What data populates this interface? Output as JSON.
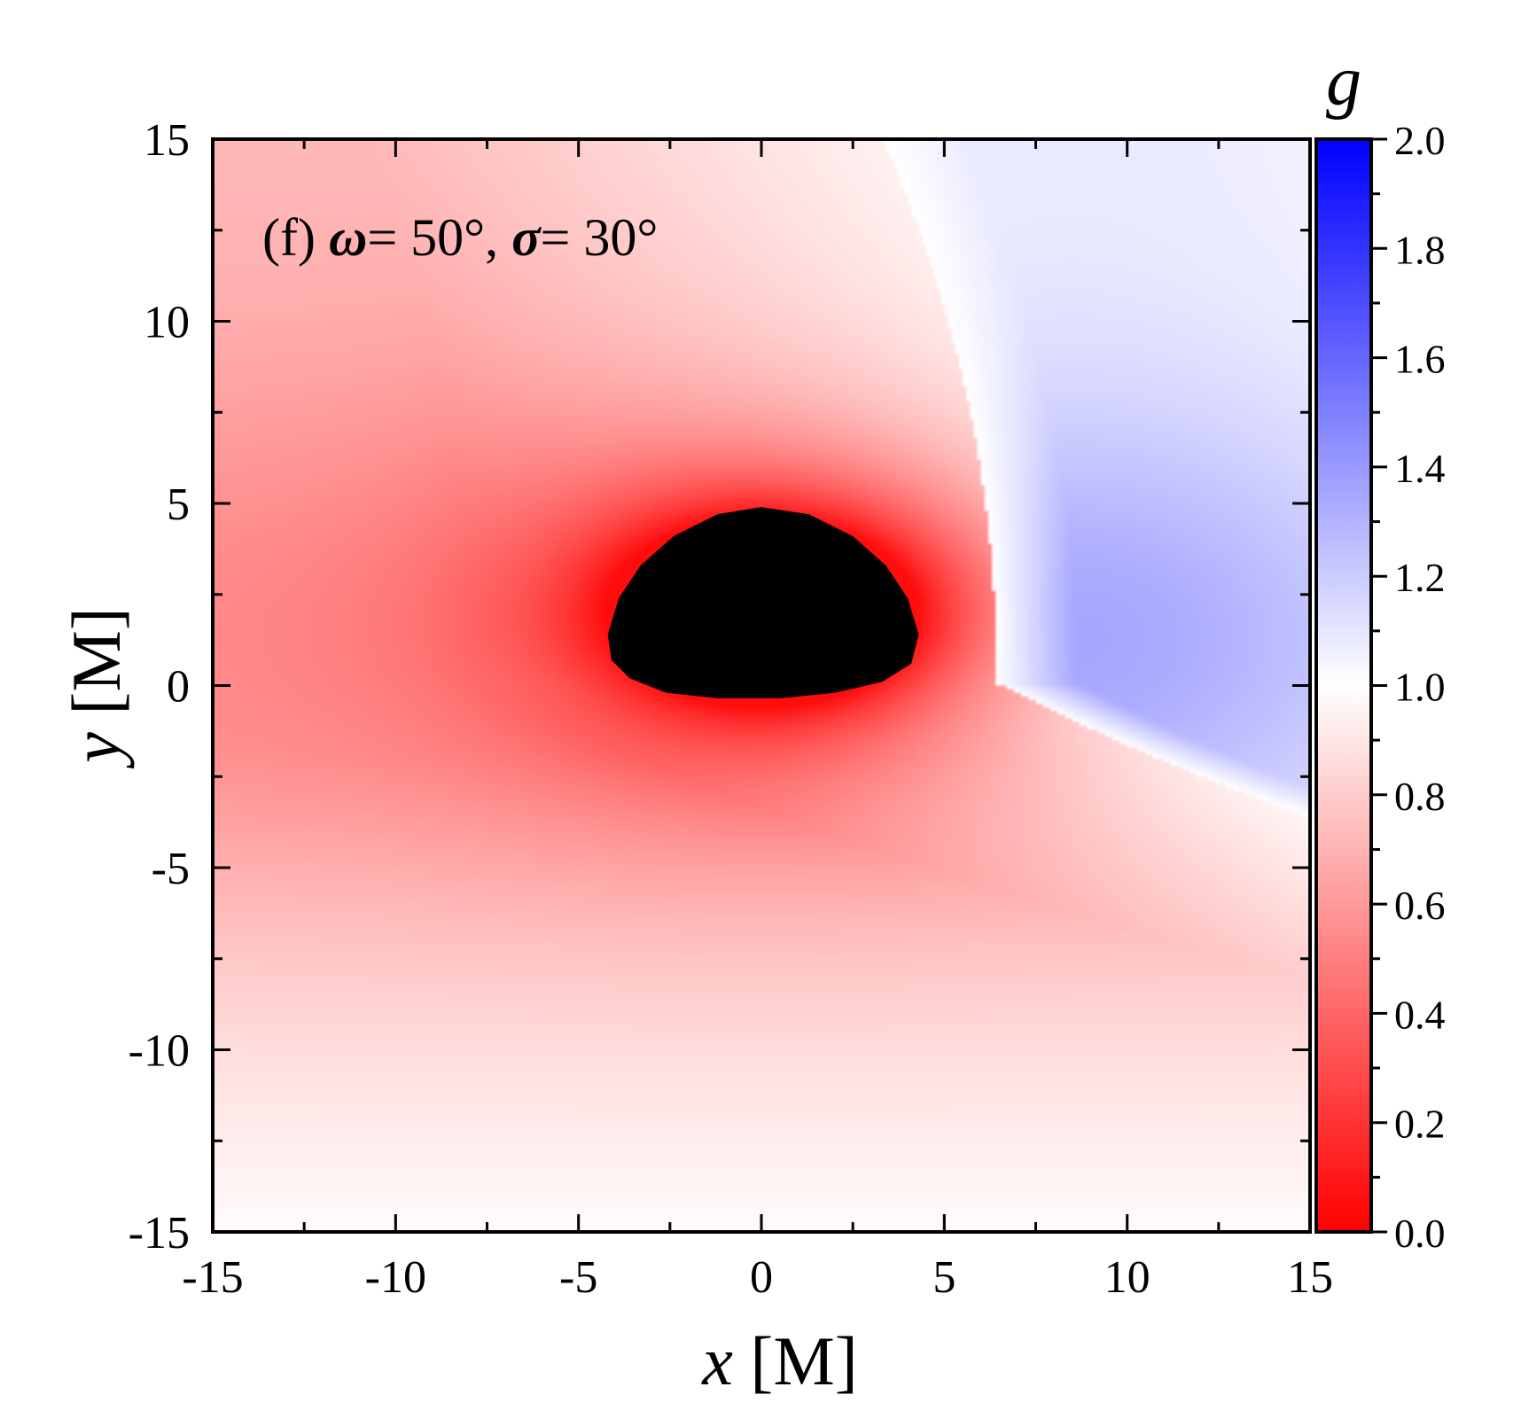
{
  "chart_data": {
    "type": "heatmap",
    "panel": {
      "label": "(f)",
      "omega_symbol": "ω",
      "omega_value": "= 50°,",
      "sigma_symbol": "σ",
      "sigma_value": "= 30°"
    },
    "xlabel": {
      "var": "x",
      "unit": "[M]"
    },
    "ylabel": {
      "var": "y",
      "unit": "[M]"
    },
    "xlim": [
      -15,
      15
    ],
    "ylim": [
      -15,
      15
    ],
    "x_ticks": [
      -15,
      -10,
      -5,
      0,
      5,
      10,
      15
    ],
    "y_ticks": [
      -15,
      -10,
      -5,
      0,
      5,
      10,
      15
    ],
    "x_tick_labels": [
      "-15",
      "-10",
      "-5",
      "0",
      "5",
      "10",
      "15"
    ],
    "y_tick_labels": [
      "-15",
      "-10",
      "-5",
      "0",
      "5",
      "10",
      "15"
    ],
    "colorbar": {
      "label": "g",
      "range": [
        0.0,
        2.0
      ],
      "ticks": [
        0.0,
        0.2,
        0.4,
        0.6,
        0.8,
        1.0,
        1.2,
        1.4,
        1.6,
        1.8,
        2.0
      ],
      "tick_labels": [
        "0.0",
        "0.2",
        "0.4",
        "0.6",
        "0.8",
        "1.0",
        "1.2",
        "1.4",
        "1.6",
        "1.8",
        "2.0"
      ],
      "colors": {
        "low": "#ff0000",
        "mid": "#ffffff",
        "high": "#0000ff"
      }
    },
    "field": {
      "shadow_color": "#000000",
      "shadow_outline": [
        [
          -4.2,
          1.4
        ],
        [
          -3.9,
          2.4
        ],
        [
          -3.3,
          3.3
        ],
        [
          -2.4,
          4.1
        ],
        [
          -1.2,
          4.7
        ],
        [
          0.0,
          4.9
        ],
        [
          1.3,
          4.7
        ],
        [
          2.5,
          4.1
        ],
        [
          3.4,
          3.3
        ],
        [
          4.0,
          2.4
        ],
        [
          4.3,
          1.4
        ],
        [
          4.1,
          0.6
        ],
        [
          3.3,
          0.1
        ],
        [
          2.0,
          -0.2
        ],
        [
          0.5,
          -0.35
        ],
        [
          -1.2,
          -0.35
        ],
        [
          -2.6,
          -0.2
        ],
        [
          -3.6,
          0.2
        ],
        [
          -4.1,
          0.7
        ]
      ],
      "shadow_g": 0.0,
      "near_shadow_g": 0.05,
      "far_left_g": 0.55,
      "upper_left_g": 0.7,
      "lower_left_g": 0.85,
      "g_equals_1_boundary": [
        [
          6.2,
          15
        ],
        [
          6.3,
          5.5
        ],
        [
          6.6,
          0.0
        ],
        [
          7.5,
          -2.0
        ],
        [
          15,
          -4.5
        ]
      ],
      "max_blueshift": {
        "x": 8.5,
        "y": 1.3,
        "g": 1.35
      },
      "right_edge_g": 1.2
    }
  }
}
